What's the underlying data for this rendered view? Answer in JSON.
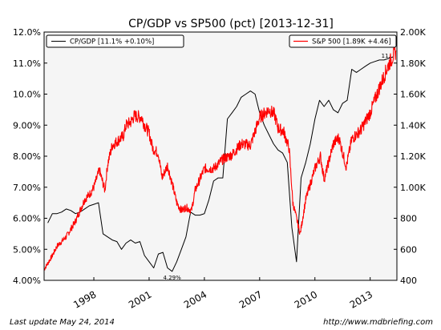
{
  "chart_data": {
    "type": "line",
    "title": "CP/GDP vs SP500 (pct) [2013-12-31]",
    "x_ticks": [
      "1998",
      "2001",
      "2004",
      "2007",
      "2010",
      "2013"
    ],
    "x_tick_values": [
      1998,
      2001,
      2004,
      2007,
      2010,
      2013
    ],
    "xlim": [
      1995.3,
      2014.45
    ],
    "y_left": {
      "ticks": [
        "4.00%",
        "5.00%",
        "6.00%",
        "7.00%",
        "8.00%",
        "9.00%",
        "10.0%",
        "11.0%",
        "12.0%"
      ],
      "tick_values": [
        4,
        5,
        6,
        7,
        8,
        9,
        10,
        11,
        12
      ],
      "lim": [
        4,
        12
      ]
    },
    "y_right": {
      "ticks": [
        "400",
        "600",
        "800",
        "1.00K",
        "1.20K",
        "1.40K",
        "1.60K",
        "1.80K",
        "2.00K"
      ],
      "tick_values": [
        400,
        600,
        800,
        1000,
        1200,
        1400,
        1600,
        1800,
        2000
      ],
      "lim": [
        400,
        2000
      ]
    },
    "series": [
      {
        "name": "CP/GDP [11.1% +0.10%]",
        "axis": "left",
        "color": "#000000",
        "x": [
          1995.5,
          1995.75,
          1996.0,
          1996.25,
          1996.5,
          1996.75,
          1997.0,
          1997.25,
          1997.5,
          1997.75,
          1998.0,
          1998.25,
          1998.5,
          1998.75,
          1999.0,
          1999.25,
          1999.5,
          1999.75,
          2000.0,
          2000.25,
          2000.5,
          2000.75,
          2001.0,
          2001.25,
          2001.5,
          2001.75,
          2002.0,
          2002.25,
          2002.5,
          2002.75,
          2003.0,
          2003.25,
          2003.5,
          2003.75,
          2004.0,
          2004.25,
          2004.5,
          2004.75,
          2005.0,
          2005.25,
          2005.5,
          2005.75,
          2006.0,
          2006.25,
          2006.5,
          2006.75,
          2007.0,
          2007.25,
          2007.5,
          2007.75,
          2008.0,
          2008.25,
          2008.5,
          2008.75,
          2009.0,
          2009.25,
          2009.5,
          2009.75,
          2010.0,
          2010.25,
          2010.5,
          2010.75,
          2011.0,
          2011.25,
          2011.5,
          2011.75,
          2012.0,
          2012.25,
          2012.5,
          2012.75,
          2013.0,
          2013.25,
          2013.5,
          2013.75,
          2014.0,
          2014.25
        ],
        "y": [
          5.85,
          6.15,
          6.15,
          6.2,
          6.3,
          6.25,
          6.15,
          6.2,
          6.3,
          6.4,
          6.45,
          6.5,
          5.5,
          5.4,
          5.3,
          5.25,
          5.0,
          5.2,
          5.3,
          5.2,
          5.25,
          4.8,
          4.6,
          4.4,
          4.85,
          4.9,
          4.4,
          4.29,
          4.6,
          5.0,
          5.4,
          6.2,
          6.1,
          6.1,
          6.15,
          6.6,
          7.2,
          7.3,
          7.3,
          9.2,
          9.4,
          9.6,
          9.9,
          10.0,
          10.1,
          10.0,
          9.4,
          9.0,
          8.7,
          8.4,
          8.2,
          8.1,
          7.8,
          5.7,
          4.6,
          7.3,
          7.8,
          8.4,
          9.2,
          9.8,
          9.6,
          9.8,
          9.5,
          9.4,
          9.7,
          9.8,
          10.8,
          10.7,
          10.8,
          10.9,
          11.0,
          11.05,
          11.1,
          11.1,
          11.15,
          11.2
        ]
      },
      {
        "name": "S&P 500 [1.89K +4.46]",
        "axis": "right",
        "color": "#ff0000",
        "x": [
          1995.3,
          1995.75,
          1996.0,
          1996.5,
          1997.0,
          1997.5,
          1997.8,
          1998.0,
          1998.3,
          1998.6,
          1998.75,
          1999.0,
          1999.3,
          1999.6,
          1999.75,
          2000.0,
          2000.2,
          2000.6,
          2000.75,
          2001.0,
          2001.2,
          2001.5,
          2001.7,
          2002.0,
          2002.3,
          2002.5,
          2002.75,
          2003.0,
          2003.3,
          2003.5,
          2004.0,
          2004.5,
          2005.0,
          2005.5,
          2006.0,
          2006.5,
          2007.0,
          2007.5,
          2007.8,
          2008.0,
          2008.3,
          2008.6,
          2008.8,
          2009.0,
          2009.2,
          2009.5,
          2010.0,
          2010.3,
          2010.5,
          2011.0,
          2011.3,
          2011.7,
          2012.0,
          2012.5,
          2013.0,
          2013.5,
          2014.0,
          2014.4
        ],
        "y": [
          470,
          560,
          620,
          680,
          780,
          920,
          960,
          1000,
          1110,
          980,
          1150,
          1270,
          1300,
          1330,
          1400,
          1420,
          1460,
          1450,
          1400,
          1350,
          1250,
          1220,
          1060,
          1140,
          1000,
          900,
          850,
          870,
          850,
          980,
          1120,
          1120,
          1180,
          1210,
          1280,
          1270,
          1450,
          1500,
          1470,
          1380,
          1360,
          1250,
          900,
          800,
          700,
          920,
          1120,
          1200,
          1050,
          1280,
          1320,
          1130,
          1310,
          1370,
          1480,
          1640,
          1790,
          1880
        ]
      }
    ],
    "annotations": [
      {
        "text": "4.29%",
        "x": 2002.25,
        "y": 4.29,
        "axis": "left"
      },
      {
        "text": "11.",
        "x": 2013.85,
        "y": 11.1,
        "axis": "left"
      }
    ],
    "legend_left": "top-left",
    "legend_right": "top-right",
    "grid": false
  },
  "footer": {
    "left": "Last update May 24, 2014",
    "right": "http://www.mdbriefing.com"
  }
}
